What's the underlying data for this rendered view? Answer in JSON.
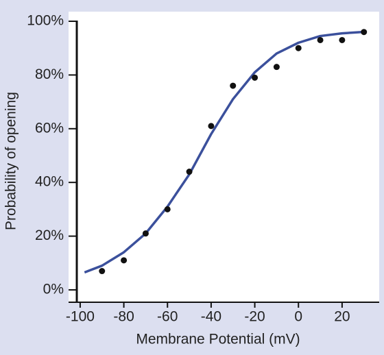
{
  "chart_data": {
    "type": "scatter",
    "xlabel": "Membrane Potential (mV)",
    "ylabel": "Probability of opening",
    "xlim": [
      -105,
      37
    ],
    "ylim": [
      -4.5,
      103.5
    ],
    "xticks": [
      -100,
      -80,
      -60,
      -40,
      -20,
      0,
      20
    ],
    "yticks": [
      {
        "value": 0,
        "label": "0%"
      },
      {
        "value": 20,
        "label": "20%"
      },
      {
        "value": 40,
        "label": "40%"
      },
      {
        "value": 60,
        "label": "60%"
      },
      {
        "value": 80,
        "label": "80%"
      },
      {
        "value": 100,
        "label": "100%"
      }
    ],
    "series": [
      {
        "type": "line",
        "color": "#3b509c",
        "x": [
          -98,
          -90,
          -80,
          -70,
          -60,
          -50,
          -40,
          -30,
          -20,
          -10,
          0,
          10,
          20,
          29
        ],
        "values": [
          6.5,
          9,
          14,
          21,
          31,
          43,
          58,
          71,
          81,
          88,
          92,
          94.5,
          95.5,
          96
        ]
      },
      {
        "type": "scatter",
        "color": "#111111",
        "x": [
          -90,
          -80,
          -70,
          -60,
          -50,
          -40,
          -30,
          -20,
          -10,
          0,
          10,
          20,
          30
        ],
        "values": [
          7,
          11,
          21,
          30,
          44,
          61,
          76,
          79,
          83,
          90,
          93,
          93,
          96
        ]
      }
    ]
  }
}
